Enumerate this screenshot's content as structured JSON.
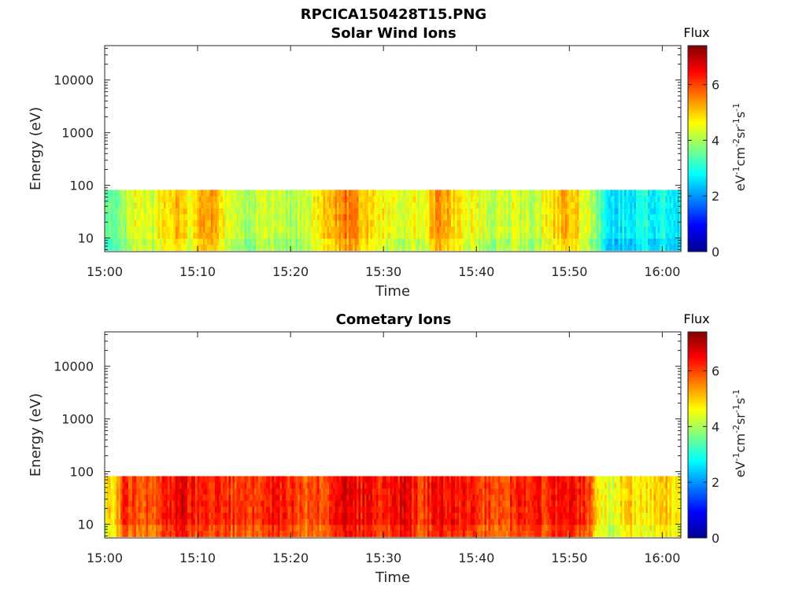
{
  "figure_title": "RPCICA150428T15.PNG",
  "colormap": [
    "#00008f",
    "#0000ff",
    "#0080ff",
    "#00ffff",
    "#80ff80",
    "#ffff00",
    "#ff8000",
    "#ff0000",
    "#800000"
  ],
  "chart_data": [
    {
      "type": "heatmap",
      "title": "Solar Wind Ions",
      "xlabel": "Time",
      "ylabel": "Energy (eV)",
      "x_ticks": [
        "15:00",
        "15:10",
        "15:20",
        "15:30",
        "15:40",
        "15:50",
        "16:00"
      ],
      "xlim": [
        "15:00",
        "16:02"
      ],
      "y_scale": "log",
      "y_ticks": [
        "10",
        "100",
        "1000",
        "10000"
      ],
      "ylim": [
        5.5,
        45000
      ],
      "data_energy_range": [
        5.8,
        82
      ],
      "colorbar_title": "Flux",
      "colorbar_label": "eV-1cm-2sr-1s-1",
      "colorbar_ticks": [
        "0",
        "2",
        "4",
        "6"
      ],
      "clim": [
        0,
        7.4
      ],
      "time_profile": [
        {
          "t": "15:00",
          "v": 3.4
        },
        {
          "t": "15:02",
          "v": 3.8
        },
        {
          "t": "15:03",
          "v": 4.6
        },
        {
          "t": "15:05",
          "v": 4.2
        },
        {
          "t": "15:07",
          "v": 5.2
        },
        {
          "t": "15:09",
          "v": 4.6
        },
        {
          "t": "15:11",
          "v": 5.4
        },
        {
          "t": "15:13",
          "v": 4.4
        },
        {
          "t": "15:15",
          "v": 4.0
        },
        {
          "t": "15:17",
          "v": 4.2
        },
        {
          "t": "15:20",
          "v": 4.0
        },
        {
          "t": "15:22",
          "v": 4.4
        },
        {
          "t": "15:24",
          "v": 5.0
        },
        {
          "t": "15:26",
          "v": 5.6
        },
        {
          "t": "15:28",
          "v": 5.0
        },
        {
          "t": "15:30",
          "v": 4.6
        },
        {
          "t": "15:32",
          "v": 4.4
        },
        {
          "t": "15:34",
          "v": 4.6
        },
        {
          "t": "15:36",
          "v": 5.4
        },
        {
          "t": "15:38",
          "v": 4.8
        },
        {
          "t": "15:40",
          "v": 4.4
        },
        {
          "t": "15:42",
          "v": 4.2
        },
        {
          "t": "15:44",
          "v": 4.4
        },
        {
          "t": "15:46",
          "v": 4.0
        },
        {
          "t": "15:48",
          "v": 4.8
        },
        {
          "t": "15:50",
          "v": 5.2
        },
        {
          "t": "15:52",
          "v": 4.2
        },
        {
          "t": "15:54",
          "v": 2.8
        },
        {
          "t": "15:56",
          "v": 2.6
        },
        {
          "t": "15:58",
          "v": 3.0
        },
        {
          "t": "16:00",
          "v": 2.8
        },
        {
          "t": "16:02",
          "v": 2.8
        }
      ]
    },
    {
      "type": "heatmap",
      "title": "Cometary Ions",
      "xlabel": "Time",
      "ylabel": "Energy (eV)",
      "x_ticks": [
        "15:00",
        "15:10",
        "15:20",
        "15:30",
        "15:40",
        "15:50",
        "16:00"
      ],
      "xlim": [
        "15:00",
        "16:02"
      ],
      "y_scale": "log",
      "y_ticks": [
        "10",
        "100",
        "1000",
        "10000"
      ],
      "ylim": [
        5.5,
        45000
      ],
      "data_energy_range": [
        5.8,
        82
      ],
      "colorbar_title": "Flux",
      "colorbar_label": "eV-1cm-2sr-1s-1",
      "colorbar_ticks": [
        "0",
        "2",
        "4",
        "6"
      ],
      "clim": [
        0,
        7.4
      ],
      "time_profile": [
        {
          "t": "15:00",
          "v": 4.6
        },
        {
          "t": "15:01",
          "v": 5.0
        },
        {
          "t": "15:02",
          "v": 6.2
        },
        {
          "t": "15:04",
          "v": 5.8
        },
        {
          "t": "15:06",
          "v": 6.2
        },
        {
          "t": "15:08",
          "v": 6.6
        },
        {
          "t": "15:10",
          "v": 6.2
        },
        {
          "t": "15:12",
          "v": 6.4
        },
        {
          "t": "15:14",
          "v": 6.0
        },
        {
          "t": "15:16",
          "v": 6.2
        },
        {
          "t": "15:18",
          "v": 6.4
        },
        {
          "t": "15:20",
          "v": 6.2
        },
        {
          "t": "15:22",
          "v": 5.8
        },
        {
          "t": "15:24",
          "v": 6.2
        },
        {
          "t": "15:26",
          "v": 6.6
        },
        {
          "t": "15:28",
          "v": 6.4
        },
        {
          "t": "15:30",
          "v": 6.2
        },
        {
          "t": "15:32",
          "v": 6.6
        },
        {
          "t": "15:34",
          "v": 6.0
        },
        {
          "t": "15:36",
          "v": 6.6
        },
        {
          "t": "15:38",
          "v": 6.4
        },
        {
          "t": "15:40",
          "v": 6.2
        },
        {
          "t": "15:42",
          "v": 6.0
        },
        {
          "t": "15:44",
          "v": 6.2
        },
        {
          "t": "15:46",
          "v": 6.4
        },
        {
          "t": "15:48",
          "v": 6.2
        },
        {
          "t": "15:50",
          "v": 6.4
        },
        {
          "t": "15:52",
          "v": 6.0
        },
        {
          "t": "15:54",
          "v": 4.2
        },
        {
          "t": "15:56",
          "v": 5.0
        },
        {
          "t": "15:58",
          "v": 4.6
        },
        {
          "t": "16:00",
          "v": 5.2
        },
        {
          "t": "16:02",
          "v": 4.4
        }
      ]
    }
  ]
}
